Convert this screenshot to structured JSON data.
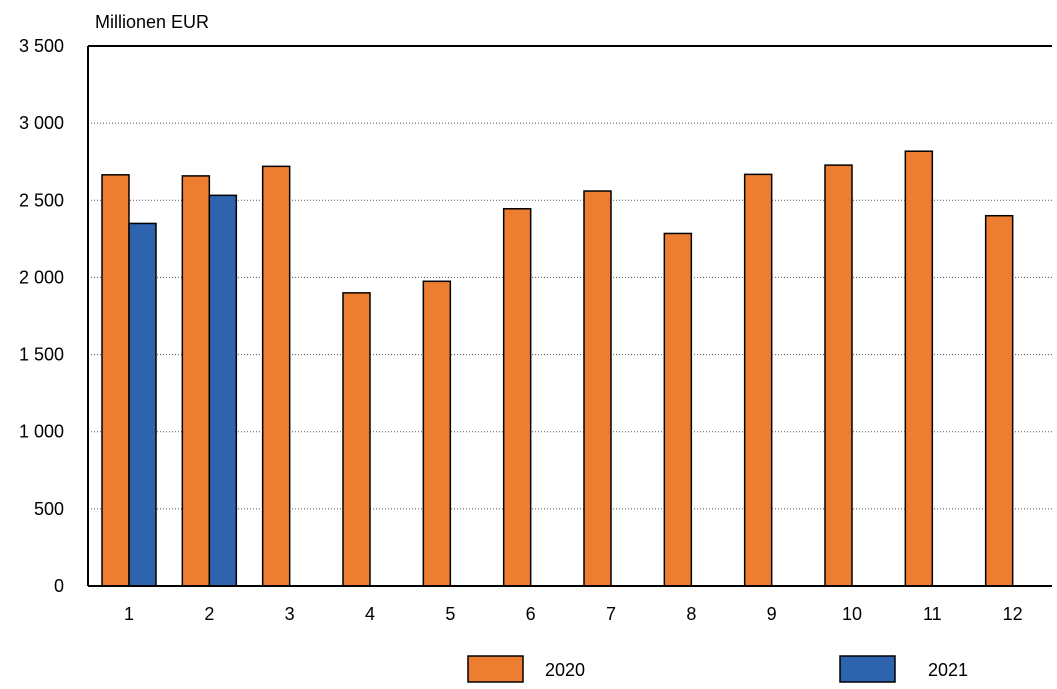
{
  "chart_data": {
    "type": "bar",
    "title": "",
    "ylabel": "Millionen EUR",
    "xlabel": "",
    "ylim": [
      0,
      3500
    ],
    "yticks": [
      0,
      500,
      1000,
      1500,
      2000,
      2500,
      3000,
      3500
    ],
    "ytick_labels": [
      "0",
      "500",
      "1 000",
      "1 500",
      "2 000",
      "2 500",
      "3 000",
      "3 500"
    ],
    "categories": [
      "1",
      "2",
      "3",
      "4",
      "5",
      "6",
      "7",
      "8",
      "9",
      "10",
      "11",
      "12"
    ],
    "grid": "horizontal dotted",
    "legend_position": "bottom",
    "series": [
      {
        "name": "2020",
        "color": "#ED7D31",
        "values": [
          2665,
          2658,
          2720,
          1900,
          1975,
          2445,
          2560,
          2285,
          2668,
          2728,
          2818,
          2400
        ]
      },
      {
        "name": "2021",
        "color": "#2E63AD",
        "values": [
          2350,
          2532,
          null,
          null,
          null,
          null,
          null,
          null,
          null,
          null,
          null,
          null
        ]
      }
    ]
  }
}
